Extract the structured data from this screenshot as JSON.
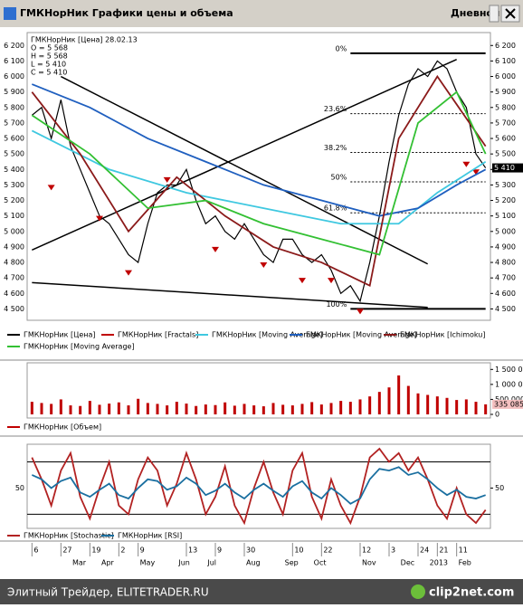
{
  "window": {
    "title": "ГМКНорНик Графики цены и объема",
    "period": "Дневной"
  },
  "footer": {
    "left": "Элитный Трейдер, ELITETRADER.RU",
    "logo": "clip2net.com"
  },
  "chart_data": [
    {
      "type": "line",
      "header": [
        "ГМКНорНик [Цена] 28.02.13",
        "O = 5 568",
        "H = 5 568",
        "L = 5 410",
        "C = 5 410"
      ],
      "categories": [
        "6",
        null,
        null,
        "27",
        null,
        null,
        "19",
        null,
        null,
        "2",
        null,
        "9",
        null,
        null,
        null,
        null,
        "13",
        null,
        null,
        "9",
        null,
        null,
        "30",
        null,
        null,
        null,
        null,
        "10",
        null,
        null,
        "22",
        null,
        null,
        null,
        "12",
        null,
        null,
        "3",
        null,
        null,
        "24",
        null,
        "21",
        null,
        "11",
        null,
        null,
        null
      ],
      "months": [
        null,
        null,
        null,
        null,
        "Mar",
        null,
        null,
        "Apr",
        null,
        null,
        null,
        "May",
        null,
        null,
        null,
        "Jun",
        null,
        null,
        "Jul",
        null,
        null,
        null,
        "Aug",
        null,
        null,
        null,
        "Sep",
        null,
        null,
        "Oct",
        null,
        null,
        null,
        null,
        "Nov",
        null,
        null,
        null,
        "Dec",
        null,
        null,
        "2013",
        null,
        null,
        "Feb",
        null,
        null,
        null
      ],
      "series": [
        {
          "name": "ГМКНорНик [Цена]",
          "color": "#000000",
          "style": "line",
          "values": [
            5750,
            5800,
            5600,
            5850,
            5550,
            5400,
            5250,
            5100,
            5050,
            4950,
            4850,
            4800,
            5050,
            5250,
            5300,
            5300,
            5400,
            5200,
            5050,
            5100,
            5000,
            4950,
            5050,
            4950,
            4850,
            4800,
            4950,
            4950,
            4850,
            4800,
            4850,
            4750,
            4600,
            4650,
            4550,
            4800,
            5100,
            5450,
            5750,
            5950,
            6050,
            6000,
            6100,
            6050,
            5900,
            5800,
            5500,
            5410
          ],
          "value_labels": [
            null,
            null,
            null,
            null,
            null,
            null,
            null,
            null,
            null,
            null,
            null,
            null,
            null,
            null,
            null,
            null,
            null,
            null,
            null,
            null,
            null,
            null,
            null,
            null,
            null,
            null,
            null,
            null,
            null,
            null,
            null,
            null,
            null,
            null,
            null,
            null,
            null,
            null,
            null,
            null,
            null,
            null,
            null,
            null,
            null,
            null,
            null,
            "5 410"
          ]
        },
        {
          "name": "ГМКНорНик [Fractals]",
          "color": "#c00000",
          "style": "markers",
          "x": [
            2,
            7,
            10,
            14,
            19,
            24,
            28,
            31,
            34,
            45,
            46
          ],
          "values": [
            5300,
            5100,
            4750,
            5350,
            4900,
            4800,
            4700,
            4700,
            4500,
            5450,
            5400
          ]
        },
        {
          "name": "ГМКНорНик [Moving Average]",
          "color": "#3fc8e0",
          "style": "line",
          "x": [
            0,
            8,
            16,
            24,
            32,
            38,
            42,
            47
          ],
          "values": [
            5650,
            5400,
            5250,
            5150,
            5050,
            5050,
            5250,
            5450
          ]
        },
        {
          "name": "ГМКНорНик [Moving Average]",
          "color": "#1f5fbf",
          "style": "line",
          "x": [
            0,
            6,
            12,
            18,
            24,
            30,
            36,
            40,
            44,
            47
          ],
          "values": [
            5950,
            5800,
            5600,
            5450,
            5300,
            5200,
            5100,
            5150,
            5300,
            5400
          ]
        },
        {
          "name": "ГМКНорНик [Ichimoku]",
          "color": "#8b1a1a",
          "style": "line",
          "x": [
            0,
            5,
            10,
            15,
            20,
            25,
            30,
            35,
            38,
            42,
            47
          ],
          "values": [
            5900,
            5500,
            5000,
            5350,
            5100,
            4900,
            4800,
            4650,
            5600,
            6000,
            5550
          ]
        },
        {
          "name": "ГМКНорНик [Moving Average]",
          "color": "#33c033",
          "style": "line",
          "x": [
            0,
            6,
            12,
            18,
            24,
            30,
            36,
            40,
            44,
            47
          ],
          "values": [
            5750,
            5500,
            5150,
            5200,
            5050,
            4950,
            4850,
            5700,
            5900,
            5500
          ]
        }
      ],
      "fib_levels": [
        {
          "label": "0%",
          "value": 6150
        },
        {
          "label": "23.6%",
          "value": 5760
        },
        {
          "label": "38.2%",
          "value": 5510
        },
        {
          "label": "50%",
          "value": 5320
        },
        {
          "label": "61.8%",
          "value": 5120
        },
        {
          "label": "100%",
          "value": 4500
        }
      ],
      "fib_x": [
        33,
        47
      ],
      "trend_lines": [
        {
          "x": [
            0,
            44
          ],
          "y": [
            4880,
            6110
          ]
        },
        {
          "x": [
            3,
            41
          ],
          "y": [
            6000,
            4790
          ]
        },
        {
          "x": [
            0,
            41
          ],
          "y": [
            4670,
            4510
          ]
        }
      ],
      "ylim": [
        4450,
        6260
      ],
      "yticks": [
        {
          "value": 4500,
          "label": "4 500"
        },
        {
          "value": 4600,
          "label": "4 600"
        },
        {
          "value": 4700,
          "label": "4 700"
        },
        {
          "value": 4800,
          "label": "4 800"
        },
        {
          "value": 4900,
          "label": "4 900"
        },
        {
          "value": 5000,
          "label": "5 000"
        },
        {
          "value": 5100,
          "label": "5 100"
        },
        {
          "value": 5200,
          "label": "5 200"
        },
        {
          "value": 5300,
          "label": "5 300"
        },
        {
          "value": 5400,
          "label": "5 400"
        },
        {
          "value": 5500,
          "label": "5 500"
        },
        {
          "value": 5600,
          "label": "5 600"
        },
        {
          "value": 5700,
          "label": "5 700"
        },
        {
          "value": 5800,
          "label": "5 800"
        },
        {
          "value": 5900,
          "label": "5 900"
        },
        {
          "value": 6000,
          "label": "6 000"
        },
        {
          "value": 6100,
          "label": "6 100"
        },
        {
          "value": 6200,
          "label": "6 200"
        }
      ]
    },
    {
      "type": "bar",
      "series": [
        {
          "name": "ГМКНорНик [Объем]",
          "color": "#c00000",
          "values": [
            420000,
            380000,
            350000,
            500000,
            300000,
            280000,
            450000,
            320000,
            360000,
            400000,
            300000,
            520000,
            380000,
            350000,
            300000,
            420000,
            360000,
            280000,
            330000,
            310000,
            400000,
            290000,
            350000,
            300000,
            270000,
            380000,
            320000,
            300000,
            350000,
            410000,
            330000,
            380000,
            450000,
            420000,
            500000,
            600000,
            750000,
            900000,
            1300000,
            950000,
            700000,
            650000,
            600000,
            550000,
            480000,
            500000,
            420000,
            335085
          ],
          "value_labels": [
            null,
            null,
            null,
            null,
            null,
            null,
            null,
            null,
            null,
            null,
            null,
            null,
            null,
            null,
            null,
            null,
            null,
            null,
            null,
            null,
            null,
            null,
            null,
            null,
            null,
            null,
            null,
            null,
            null,
            null,
            null,
            null,
            null,
            null,
            null,
            null,
            null,
            null,
            null,
            null,
            null,
            null,
            null,
            null,
            null,
            null,
            null,
            "335 085"
          ]
        }
      ],
      "ylim": [
        0,
        1600000
      ],
      "yticks": [
        {
          "value": 0,
          "label": "0"
        },
        {
          "value": 500000,
          "label": "500 000"
        },
        {
          "value": 1000000,
          "label": "1 000 000"
        },
        {
          "value": 1500000,
          "label": "1 500 000"
        }
      ]
    },
    {
      "type": "line",
      "series": [
        {
          "name": "ГМКНорНик [Stochastic]",
          "color": "#b22222",
          "style": "line",
          "values": [
            85,
            60,
            30,
            70,
            90,
            40,
            15,
            50,
            80,
            30,
            20,
            60,
            85,
            70,
            30,
            55,
            90,
            60,
            20,
            40,
            75,
            30,
            10,
            50,
            80,
            45,
            20,
            70,
            90,
            40,
            15,
            60,
            30,
            10,
            40,
            85,
            95,
            80,
            90,
            70,
            85,
            60,
            30,
            15,
            50,
            20,
            10,
            25
          ]
        },
        {
          "name": "ГМКНорНик [RSI]",
          "color": "#1a6fa0",
          "style": "line",
          "values": [
            65,
            60,
            50,
            58,
            62,
            45,
            40,
            48,
            55,
            42,
            38,
            50,
            60,
            58,
            48,
            52,
            62,
            55,
            42,
            47,
            55,
            45,
            38,
            48,
            55,
            47,
            40,
            52,
            58,
            45,
            38,
            50,
            42,
            32,
            38,
            60,
            72,
            70,
            74,
            65,
            68,
            60,
            50,
            42,
            48,
            40,
            38,
            42
          ]
        }
      ],
      "levels": [
        80,
        20
      ],
      "ylim": [
        8,
        96
      ],
      "yticks": [
        50
      ]
    }
  ]
}
